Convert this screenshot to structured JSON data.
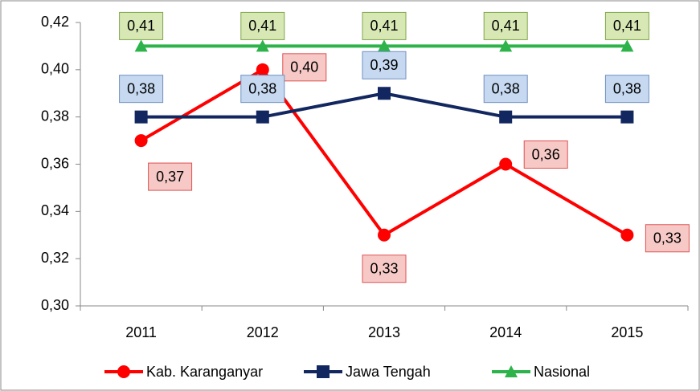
{
  "chart_data": {
    "type": "line",
    "categories": [
      "2011",
      "2012",
      "2013",
      "2014",
      "2015"
    ],
    "ylim": [
      0.3,
      0.42
    ],
    "yticks": [
      {
        "value": 0.3,
        "label": "0,30"
      },
      {
        "value": 0.32,
        "label": "0,32"
      },
      {
        "value": 0.34,
        "label": "0,34"
      },
      {
        "value": 0.36,
        "label": "0,36"
      },
      {
        "value": 0.38,
        "label": "0,38"
      },
      {
        "value": 0.4,
        "label": "0,40"
      },
      {
        "value": 0.42,
        "label": "0,42"
      }
    ],
    "grid": false,
    "legend": "bottom",
    "series": [
      {
        "name": "Kab. Karanganyar",
        "color": "#ff0000",
        "marker": "circle",
        "values": [
          0.37,
          0.4,
          0.33,
          0.36,
          0.33
        ],
        "value_labels": [
          "0,37",
          "0,40",
          "0,33",
          "0,36",
          "0,33"
        ]
      },
      {
        "name": "Jawa Tengah",
        "color": "#12275f",
        "marker": "square",
        "values": [
          0.38,
          0.38,
          0.39,
          0.38,
          0.38
        ],
        "value_labels": [
          "0,38",
          "0,38",
          "0,39",
          "0,38",
          "0,38"
        ]
      },
      {
        "name": "Nasional",
        "color": "#2db34a",
        "marker": "triangle",
        "values": [
          0.41,
          0.41,
          0.41,
          0.41,
          0.41
        ],
        "value_labels": [
          "0,41",
          "0,41",
          "0,41",
          "0,41",
          "0,41"
        ]
      }
    ]
  }
}
